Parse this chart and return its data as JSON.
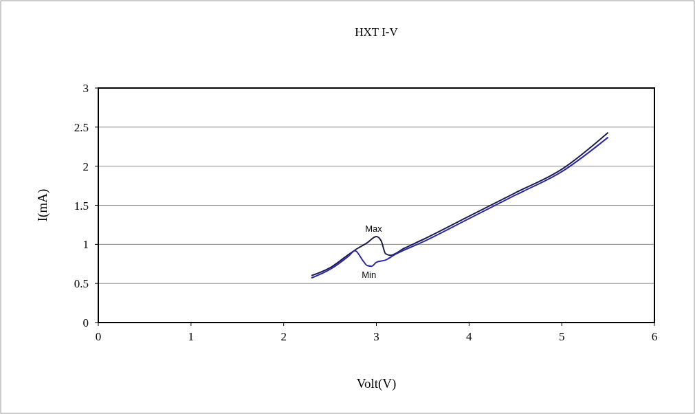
{
  "chart_data": {
    "type": "line",
    "title": "HXT I-V",
    "xlabel": "Volt(V)",
    "ylabel": "I(mA)",
    "xlim": [
      0,
      6
    ],
    "xticks": [
      0,
      1,
      2,
      3,
      4,
      5,
      6
    ],
    "ylim": [
      0,
      3
    ],
    "yticks": [
      0,
      0.5,
      1,
      1.5,
      2,
      2.5,
      3
    ],
    "grid": "y",
    "marker": "none",
    "line_style": "solid",
    "series": [
      {
        "name": "Max",
        "x": [
          2.3,
          2.5,
          2.7,
          2.8,
          2.9,
          3.0,
          3.05,
          3.1,
          3.15,
          3.3,
          3.5,
          4,
          4.5,
          5,
          5.5
        ],
        "values": [
          0.6,
          0.7,
          0.87,
          0.95,
          1.02,
          1.1,
          1.05,
          0.88,
          0.86,
          0.95,
          1.06,
          1.36,
          1.66,
          1.96,
          2.43
        ],
        "color": "#1c1c48"
      },
      {
        "name": "Min",
        "x": [
          2.3,
          2.5,
          2.7,
          2.77,
          2.85,
          2.9,
          2.95,
          3.0,
          3.1,
          3.2,
          3.5,
          4,
          4.5,
          5,
          5.5
        ],
        "values": [
          0.57,
          0.68,
          0.85,
          0.92,
          0.8,
          0.73,
          0.72,
          0.77,
          0.8,
          0.87,
          1.03,
          1.33,
          1.63,
          1.93,
          2.37
        ],
        "color": "#2a2aa0"
      }
    ]
  }
}
